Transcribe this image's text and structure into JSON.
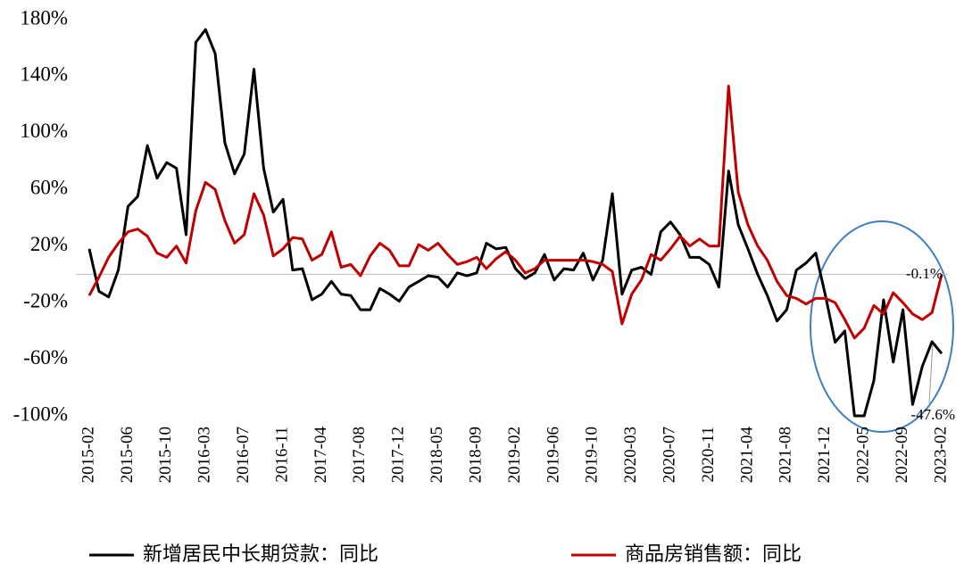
{
  "chart_data": {
    "type": "line",
    "categories": [
      "2015-02",
      null,
      null,
      null,
      "2015-06",
      null,
      null,
      null,
      "2015-10",
      null,
      null,
      null,
      "2016-03",
      null,
      null,
      null,
      "2016-07",
      null,
      null,
      null,
      "2016-11",
      null,
      null,
      null,
      "2017-04",
      null,
      null,
      null,
      "2017-08",
      null,
      null,
      null,
      "2017-12",
      null,
      null,
      null,
      "2018-05",
      null,
      null,
      null,
      "2018-09",
      null,
      null,
      null,
      "2019-02",
      null,
      null,
      null,
      "2019-06",
      null,
      null,
      null,
      "2019-10",
      null,
      null,
      null,
      "2020-03",
      null,
      null,
      null,
      "2020-07",
      null,
      null,
      null,
      "2020-11",
      null,
      null,
      null,
      "2021-04",
      null,
      null,
      null,
      "2021-08",
      null,
      null,
      null,
      "2021-12",
      null,
      null,
      null,
      "2022-05",
      null,
      null,
      null,
      "2022-09",
      null,
      null,
      null,
      "2023-02"
    ],
    "series": [
      {
        "name": "新增居民中长期贷款：同比",
        "color": "#000000",
        "values": [
          18,
          -12,
          -16,
          3,
          48,
          55,
          91,
          68,
          79,
          75,
          28,
          164,
          173,
          156,
          93,
          71,
          85,
          145,
          75,
          44,
          53,
          3,
          4,
          -18,
          -14,
          -5,
          -14,
          -15,
          -25,
          -25,
          -10,
          -14,
          -19,
          -9,
          -5,
          -1,
          -2,
          -9,
          1,
          -1,
          1,
          22,
          18,
          19,
          4,
          -3,
          1,
          14,
          -4,
          4,
          3,
          15,
          -4,
          10,
          57,
          -14,
          3,
          5,
          0,
          30,
          37,
          28,
          12,
          12,
          7,
          -9,
          73,
          35,
          18,
          0,
          -15,
          -33,
          -25,
          3,
          8,
          15,
          -15,
          -48,
          -40,
          -100,
          -100,
          -75,
          -18,
          -62,
          -25,
          -92,
          -65,
          -47.6,
          -56
        ]
      },
      {
        "name": "商品房销售额：同比",
        "color": "#c00000",
        "values": [
          -15,
          -2,
          12,
          22,
          30,
          32,
          27,
          15,
          12,
          20,
          8,
          45,
          65,
          60,
          38,
          22,
          28,
          57,
          42,
          13,
          18,
          26,
          25,
          10,
          14,
          30,
          5,
          7,
          -1,
          13,
          22,
          17,
          6,
          6,
          21,
          17,
          22,
          14,
          7,
          9,
          12,
          4,
          11,
          16,
          10,
          1,
          4,
          10,
          10,
          10,
          10,
          10,
          9,
          7,
          2,
          -35,
          -14,
          -4,
          14,
          10,
          18,
          27,
          20,
          25,
          20,
          20,
          133,
          58,
          35,
          20,
          10,
          -5,
          -15,
          -17,
          -21,
          -17,
          -17,
          -20,
          -32,
          -45,
          -38,
          -22,
          -28,
          -13,
          -20,
          -28,
          -32,
          -27,
          -0.1
        ]
      }
    ],
    "ylim": [
      -100,
      180
    ],
    "yticks": [
      {
        "value": -100,
        "label": "-100%"
      },
      {
        "value": -60,
        "label": "-60%"
      },
      {
        "value": -20,
        "label": "-20%"
      },
      {
        "value": 20,
        "label": "20%"
      },
      {
        "value": 60,
        "label": "60%"
      },
      {
        "value": 100,
        "label": "100%"
      },
      {
        "value": 140,
        "label": "140%"
      },
      {
        "value": 180,
        "label": "180%"
      }
    ],
    "grid": false,
    "legend": "bottom",
    "annotations": [
      "-0.1%",
      "-47.6%"
    ]
  }
}
